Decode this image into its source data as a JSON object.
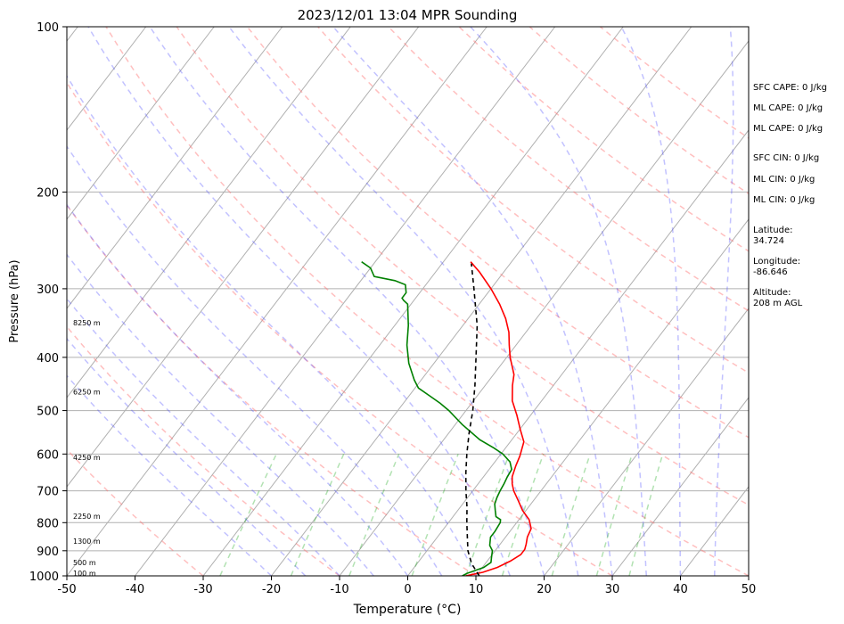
{
  "chart_data": {
    "type": "line",
    "title": "2023/12/01 13:04 MPR Sounding",
    "xlabel": "Temperature (°C)",
    "ylabel": "Pressure (hPa)",
    "xlim": [
      -50,
      50
    ],
    "ylim": [
      1000,
      100
    ],
    "y_scale": "log",
    "grid": true,
    "x_ticks": [
      -50,
      -40,
      -30,
      -20,
      -10,
      0,
      10,
      20,
      30,
      40,
      50
    ],
    "y_ticks": [
      1000,
      900,
      800,
      700,
      600,
      500,
      400,
      300,
      200,
      100
    ],
    "height_labels": [
      {
        "label": "100 m",
        "p": 988
      },
      {
        "label": "500 m",
        "p": 946
      },
      {
        "label": "1300 m",
        "p": 865
      },
      {
        "label": "2250 m",
        "p": 778
      },
      {
        "label": "4250 m",
        "p": 608
      },
      {
        "label": "6250 m",
        "p": 462
      },
      {
        "label": "8250 m",
        "p": 346
      }
    ],
    "series": [
      {
        "color": "#ff0000",
        "points": [
          [
            1000,
            8.5
          ],
          [
            985,
            10.6
          ],
          [
            965,
            12.2
          ],
          [
            940,
            13.4
          ],
          [
            915,
            14.2
          ],
          [
            895,
            14.2
          ],
          [
            875,
            13.8
          ],
          [
            850,
            13.2
          ],
          [
            820,
            12.8
          ],
          [
            790,
            11.5
          ],
          [
            760,
            9.5
          ],
          [
            730,
            7.8
          ],
          [
            700,
            6.0
          ],
          [
            680,
            5.0
          ],
          [
            660,
            4.2
          ],
          [
            630,
            3.5
          ],
          [
            605,
            3.0
          ],
          [
            570,
            2.0
          ],
          [
            540,
            0.0
          ],
          [
            510,
            -2.0
          ],
          [
            480,
            -4.3
          ],
          [
            450,
            -6.0
          ],
          [
            430,
            -7.0
          ],
          [
            400,
            -9.5
          ],
          [
            380,
            -11.0
          ],
          [
            360,
            -12.5
          ],
          [
            340,
            -14.5
          ],
          [
            320,
            -17.0
          ],
          [
            300,
            -20.0
          ],
          [
            280,
            -23.5
          ],
          [
            268,
            -26.0
          ]
        ]
      },
      {
        "color": "#008000",
        "points": [
          [
            1000,
            8.0
          ],
          [
            990,
            8.4
          ],
          [
            965,
            10.2
          ],
          [
            945,
            10.7
          ],
          [
            925,
            10.2
          ],
          [
            900,
            9.6
          ],
          [
            880,
            8.6
          ],
          [
            850,
            7.8
          ],
          [
            830,
            7.8
          ],
          [
            800,
            7.6
          ],
          [
            790,
            7.3
          ],
          [
            780,
            6.3
          ],
          [
            760,
            5.5
          ],
          [
            740,
            4.7
          ],
          [
            720,
            4.3
          ],
          [
            700,
            4.0
          ],
          [
            680,
            3.8
          ],
          [
            660,
            3.5
          ],
          [
            640,
            3.3
          ],
          [
            620,
            2.2
          ],
          [
            600,
            0.3
          ],
          [
            585,
            -1.7
          ],
          [
            565,
            -4.7
          ],
          [
            530,
            -9.0
          ],
          [
            500,
            -12.5
          ],
          [
            485,
            -14.6
          ],
          [
            470,
            -17.0
          ],
          [
            455,
            -19.5
          ],
          [
            440,
            -21.0
          ],
          [
            410,
            -23.7
          ],
          [
            380,
            -26.0
          ],
          [
            350,
            -28.0
          ],
          [
            320,
            -30.5
          ],
          [
            315,
            -31.5
          ],
          [
            312,
            -32.0
          ],
          [
            310,
            -32.0
          ],
          [
            305,
            -32.0
          ],
          [
            300,
            -32.5
          ],
          [
            295,
            -33.0
          ],
          [
            290,
            -35.0
          ],
          [
            285,
            -38.5
          ],
          [
            275,
            -40.0
          ],
          [
            268,
            -42.0
          ]
        ]
      },
      {
        "color": "#000000",
        "dashed": true,
        "points": [
          [
            1000,
            10.5
          ],
          [
            950,
            8.0
          ],
          [
            900,
            6.0
          ],
          [
            850,
            4.4
          ],
          [
            800,
            2.7
          ],
          [
            750,
            1.0
          ],
          [
            700,
            -1.0
          ],
          [
            650,
            -3.0
          ],
          [
            600,
            -5.0
          ],
          [
            550,
            -7.0
          ],
          [
            500,
            -9.0
          ],
          [
            450,
            -11.5
          ],
          [
            400,
            -14.5
          ],
          [
            350,
            -17.9
          ],
          [
            300,
            -22.5
          ],
          [
            270,
            -25.7
          ]
        ]
      }
    ]
  },
  "info": {
    "sfc_cape": "SFC CAPE: 0 J/kg",
    "ml_cape_1": "ML CAPE: 0 J/kg",
    "ml_cape_2": "ML CAPE: 0 J/kg",
    "sfc_cin": "SFC CIN: 0 J/kg",
    "ml_cin_1": "ML CIN: 0 J/kg",
    "ml_cin_2": "ML CIN: 0 J/kg",
    "latitude": "Latitude:\n34.724",
    "longitude": "Longitude:\n-86.646",
    "altitude": "Altitude:\n208 m AGL"
  }
}
